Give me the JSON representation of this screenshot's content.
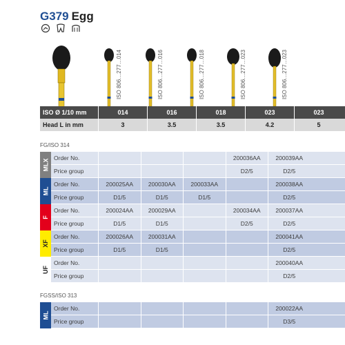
{
  "title": {
    "code": "G379",
    "name": "Egg"
  },
  "icons": [
    "speed-icon",
    "molar-icon",
    "crown-icon"
  ],
  "iso_codes": [
    "ISO 806…277…014",
    "ISO 806…277…016",
    "ISO 806…277…018",
    "ISO 806…277…023",
    "ISO 806…277…023"
  ],
  "header": {
    "iso_label": "ISO Ø 1/10 mm",
    "iso_values": [
      "014",
      "016",
      "018",
      "023",
      "023"
    ],
    "head_label": "Head L in mm",
    "head_values": [
      "3",
      "3.5",
      "3.5",
      "4.2",
      "5"
    ]
  },
  "section1": {
    "label": "FG/ISO 314"
  },
  "section2": {
    "label": "FGSS/ISO 313"
  },
  "groups": [
    {
      "tag": "MLX",
      "tag_bg": "#808080",
      "tag_color": "#ffffff",
      "row_bg": "#dde3ef",
      "order_label": "Order No.",
      "order": [
        "",
        "",
        "",
        "200036AA",
        "200039AA"
      ],
      "price_label": "Price group",
      "price": [
        "",
        "",
        "",
        "D2/5",
        "D2/5"
      ]
    },
    {
      "tag": "ML",
      "tag_bg": "#1f4e93",
      "tag_color": "#ffffff",
      "row_bg": "#c0cbe2",
      "order_label": "Order No.",
      "order": [
        "200025AA",
        "200030AA",
        "200033AA",
        "",
        "200038AA"
      ],
      "price_label": "Price group",
      "price": [
        "D1/5",
        "D1/5",
        "D1/5",
        "",
        "D2/5"
      ]
    },
    {
      "tag": "F",
      "tag_bg": "#e3001b",
      "tag_color": "#ffffff",
      "row_bg": "#dde3ef",
      "order_label": "Order No.",
      "order": [
        "200024AA",
        "200029AA",
        "",
        "200034AA",
        "200037AA"
      ],
      "price_label": "Price group",
      "price": [
        "D1/5",
        "D1/5",
        "",
        "D2/5",
        "D2/5"
      ]
    },
    {
      "tag": "XF",
      "tag_bg": "#ffec00",
      "tag_color": "#222222",
      "row_bg": "#c0cbe2",
      "order_label": "Order No.",
      "order": [
        "200026AA",
        "200031AA",
        "",
        "",
        "200041AA"
      ],
      "price_label": "Price group",
      "price": [
        "D1/5",
        "D1/5",
        "",
        "",
        "D2/5"
      ]
    },
    {
      "tag": "UF",
      "tag_bg": "#ffffff",
      "tag_color": "#222222",
      "row_bg": "#dde3ef",
      "order_label": "Order No.",
      "order": [
        "",
        "",
        "",
        "",
        "200040AA"
      ],
      "price_label": "Price group",
      "price": [
        "",
        "",
        "",
        "",
        "D2/5"
      ]
    },
    {
      "tag": "ML",
      "tag_bg": "#1f4e93",
      "tag_color": "#ffffff",
      "row_bg": "#c0cbe2",
      "order_label": "Order No.",
      "order": [
        "",
        "",
        "",
        "",
        "200022AA"
      ],
      "price_label": "Price group",
      "price": [
        "",
        "",
        "",
        "",
        "D3/5"
      ]
    }
  ]
}
